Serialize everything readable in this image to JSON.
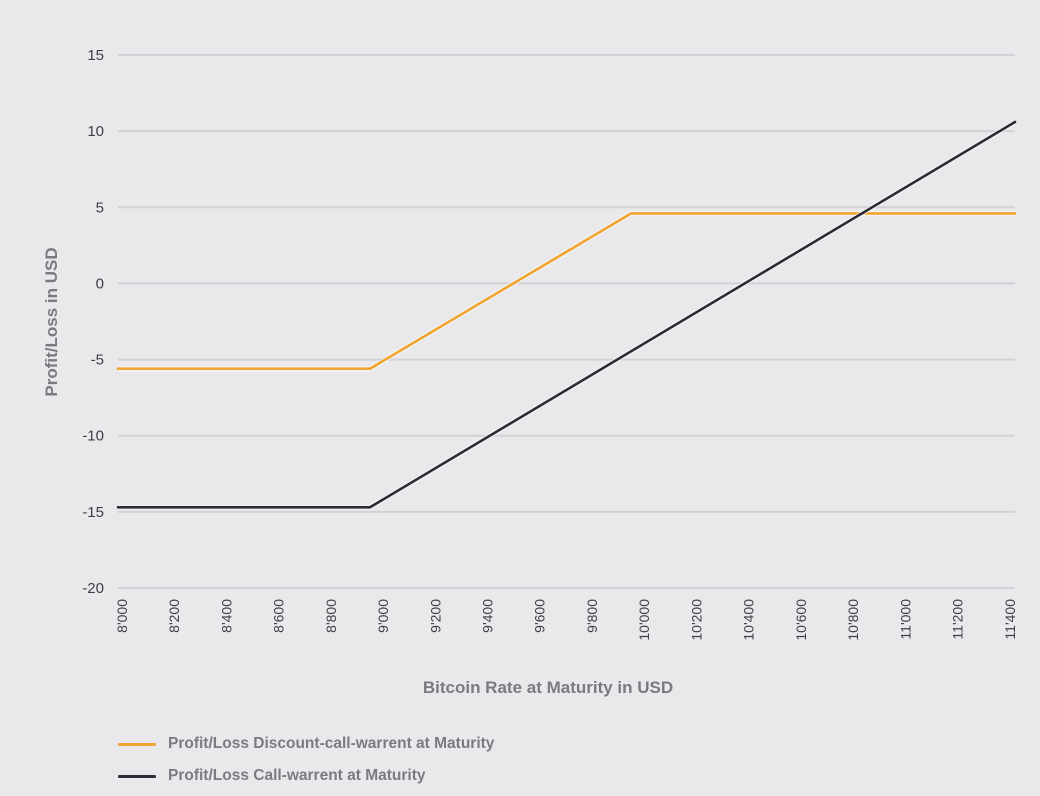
{
  "chart_data": {
    "type": "line",
    "title": "",
    "xlabel": "Bitcoin Rate at Maturity in USD",
    "ylabel": "Profit/Loss in USD",
    "x_tick_labels": [
      "8'000",
      "8'200",
      "8'400",
      "8'600",
      "8'800",
      "9'000",
      "9'200",
      "9'400",
      "9'600",
      "9'800",
      "10'000",
      "10'200",
      "10'400",
      "10'600",
      "10'800",
      "11'000",
      "11'200",
      "11'400"
    ],
    "x_ticks": [
      8000,
      8200,
      8400,
      8600,
      8800,
      9000,
      9200,
      9400,
      9600,
      9800,
      10000,
      10200,
      10400,
      10600,
      10800,
      11000,
      11200,
      11400
    ],
    "y_ticks": [
      15,
      10,
      5,
      0,
      -5,
      -10,
      -15,
      -20
    ],
    "y_tick_labels": [
      "15",
      "10",
      "5",
      "0",
      "-5",
      "-10",
      "-15",
      "-20"
    ],
    "xlim": [
      7985,
      11420
    ],
    "ylim": [
      -20,
      15
    ],
    "grid": true,
    "legend_position": "bottom-left",
    "series": [
      {
        "name": "Profit/Loss Discount-call-warrent at Maturity",
        "color": "#f0a32e",
        "points": [
          [
            7985,
            -5.6
          ],
          [
            8950,
            -5.6
          ],
          [
            9950,
            4.6
          ],
          [
            11420,
            4.6
          ]
        ]
      },
      {
        "name": "Profit/Loss Call-warrent at Maturity",
        "color": "#2b2d36",
        "points": [
          [
            7985,
            -14.7
          ],
          [
            8950,
            -14.7
          ],
          [
            11420,
            10.6
          ]
        ]
      }
    ]
  }
}
